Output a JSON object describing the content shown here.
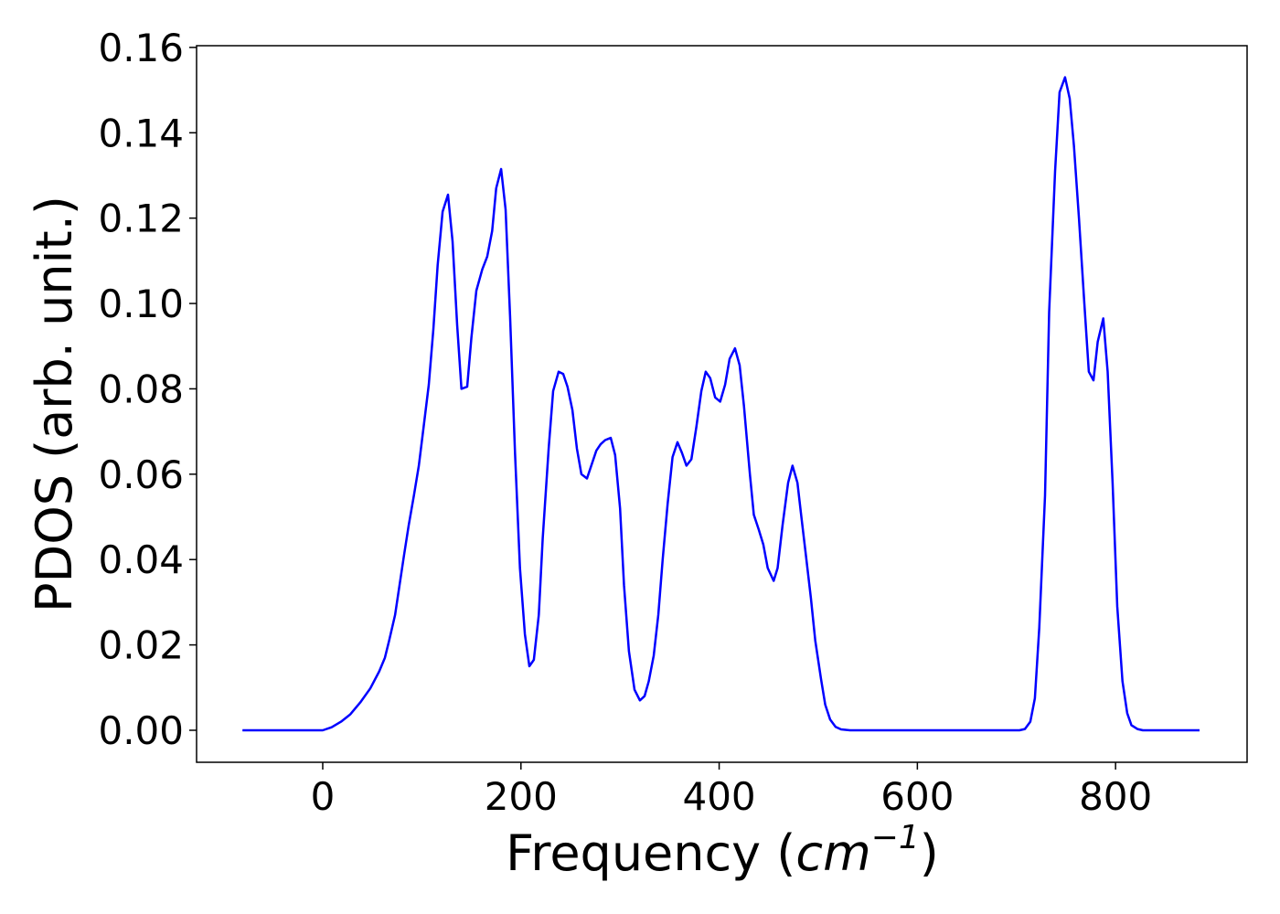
{
  "chart_data": {
    "type": "line",
    "xlabel_parts": [
      "Frequency (",
      "cm",
      "−1",
      ")"
    ],
    "ylabel": "PDOS (arb. unit.)",
    "xlim": [
      -127.3,
      932.7
    ],
    "ylim": [
      -0.0075,
      0.1604
    ],
    "xticks": [
      0,
      200,
      400,
      600,
      800
    ],
    "yticks": [
      {
        "value": 0,
        "label": "0.00"
      },
      {
        "value": 0.02,
        "label": "0.02"
      },
      {
        "value": 0.04,
        "label": "0.04"
      },
      {
        "value": 0.06,
        "label": "0.06"
      },
      {
        "value": 0.08,
        "label": "0.08"
      },
      {
        "value": 0.1,
        "label": "0.10"
      },
      {
        "value": 0.12,
        "label": "0.12"
      },
      {
        "value": 0.14,
        "label": "0.14"
      },
      {
        "value": 0.16,
        "label": "0.16"
      }
    ],
    "x": [
      -81,
      -40,
      0,
      9,
      18.5,
      27.7,
      37.8,
      48,
      57,
      62.7,
      67,
      73,
      77.5,
      82,
      86.7,
      92,
      97,
      101.5,
      107,
      111.6,
      116,
      121,
      126.4,
      131,
      135.6,
      140,
      145.8,
      150,
      155,
      161,
      166,
      171,
      175,
      180,
      184.5,
      189,
      194,
      199,
      204,
      208.5,
      213,
      218,
      222,
      228,
      232.5,
      238,
      242.6,
      247,
      252,
      256.5,
      261,
      266.6,
      271,
      276,
      280.4,
      285,
      290.6,
      295,
      300,
      304,
      309,
      314.6,
      320,
      324.7,
      329,
      334,
      338.6,
      343,
      348,
      353,
      358,
      362.5,
      367,
      372,
      377,
      382,
      386.5,
      391,
      396,
      401,
      406,
      410.5,
      416,
      420.7,
      425,
      431,
      435,
      440,
      444.6,
      449,
      455,
      459,
      464,
      469.6,
      474,
      479,
      483,
      488,
      492.6,
      497,
      502.8,
      507,
      512,
      517.5,
      523,
      532,
      600,
      703,
      708.5,
      714,
      718.6,
      723,
      728.8,
      733,
      739,
      743.5,
      749,
      753.7,
      758,
      763,
      768.5,
      773,
      777.7,
      782,
      787.6,
      792,
      797,
      801.7,
      807,
      811.8,
      816,
      822,
      827.5,
      884.7
    ],
    "series": [
      {
        "color": "#0000ff",
        "values": [
          0,
          0,
          0,
          0.0007,
          0.002,
          0.0037,
          0.0065,
          0.0098,
          0.0138,
          0.017,
          0.021,
          0.027,
          0.034,
          0.041,
          0.048,
          0.055,
          0.062,
          0.0705,
          0.081,
          0.094,
          0.109,
          0.1215,
          0.1255,
          0.1145,
          0.095,
          0.08,
          0.0805,
          0.092,
          0.103,
          0.108,
          0.111,
          0.117,
          0.127,
          0.1315,
          0.122,
          0.097,
          0.065,
          0.038,
          0.0225,
          0.015,
          0.0165,
          0.027,
          0.045,
          0.066,
          0.0795,
          0.084,
          0.0835,
          0.0805,
          0.075,
          0.066,
          0.06,
          0.059,
          0.062,
          0.0655,
          0.067,
          0.068,
          0.0685,
          0.0645,
          0.052,
          0.034,
          0.0185,
          0.0095,
          0.007,
          0.008,
          0.0115,
          0.0175,
          0.027,
          0.04,
          0.053,
          0.064,
          0.0675,
          0.065,
          0.062,
          0.0635,
          0.071,
          0.0795,
          0.084,
          0.0825,
          0.078,
          0.077,
          0.081,
          0.087,
          0.0895,
          0.0855,
          0.076,
          0.06,
          0.0505,
          0.047,
          0.0435,
          0.038,
          0.035,
          0.038,
          0.048,
          0.058,
          0.062,
          0.058,
          0.05,
          0.04,
          0.031,
          0.021,
          0.012,
          0.006,
          0.0025,
          0.0008,
          0.0002,
          0,
          0,
          0,
          0.0003,
          0.002,
          0.0075,
          0.024,
          0.055,
          0.098,
          0.131,
          0.1495,
          0.153,
          0.148,
          0.137,
          0.12,
          0.1,
          0.084,
          0.082,
          0.091,
          0.0965,
          0.084,
          0.058,
          0.029,
          0.0115,
          0.004,
          0.0012,
          0.0003,
          0,
          0
        ]
      }
    ]
  }
}
